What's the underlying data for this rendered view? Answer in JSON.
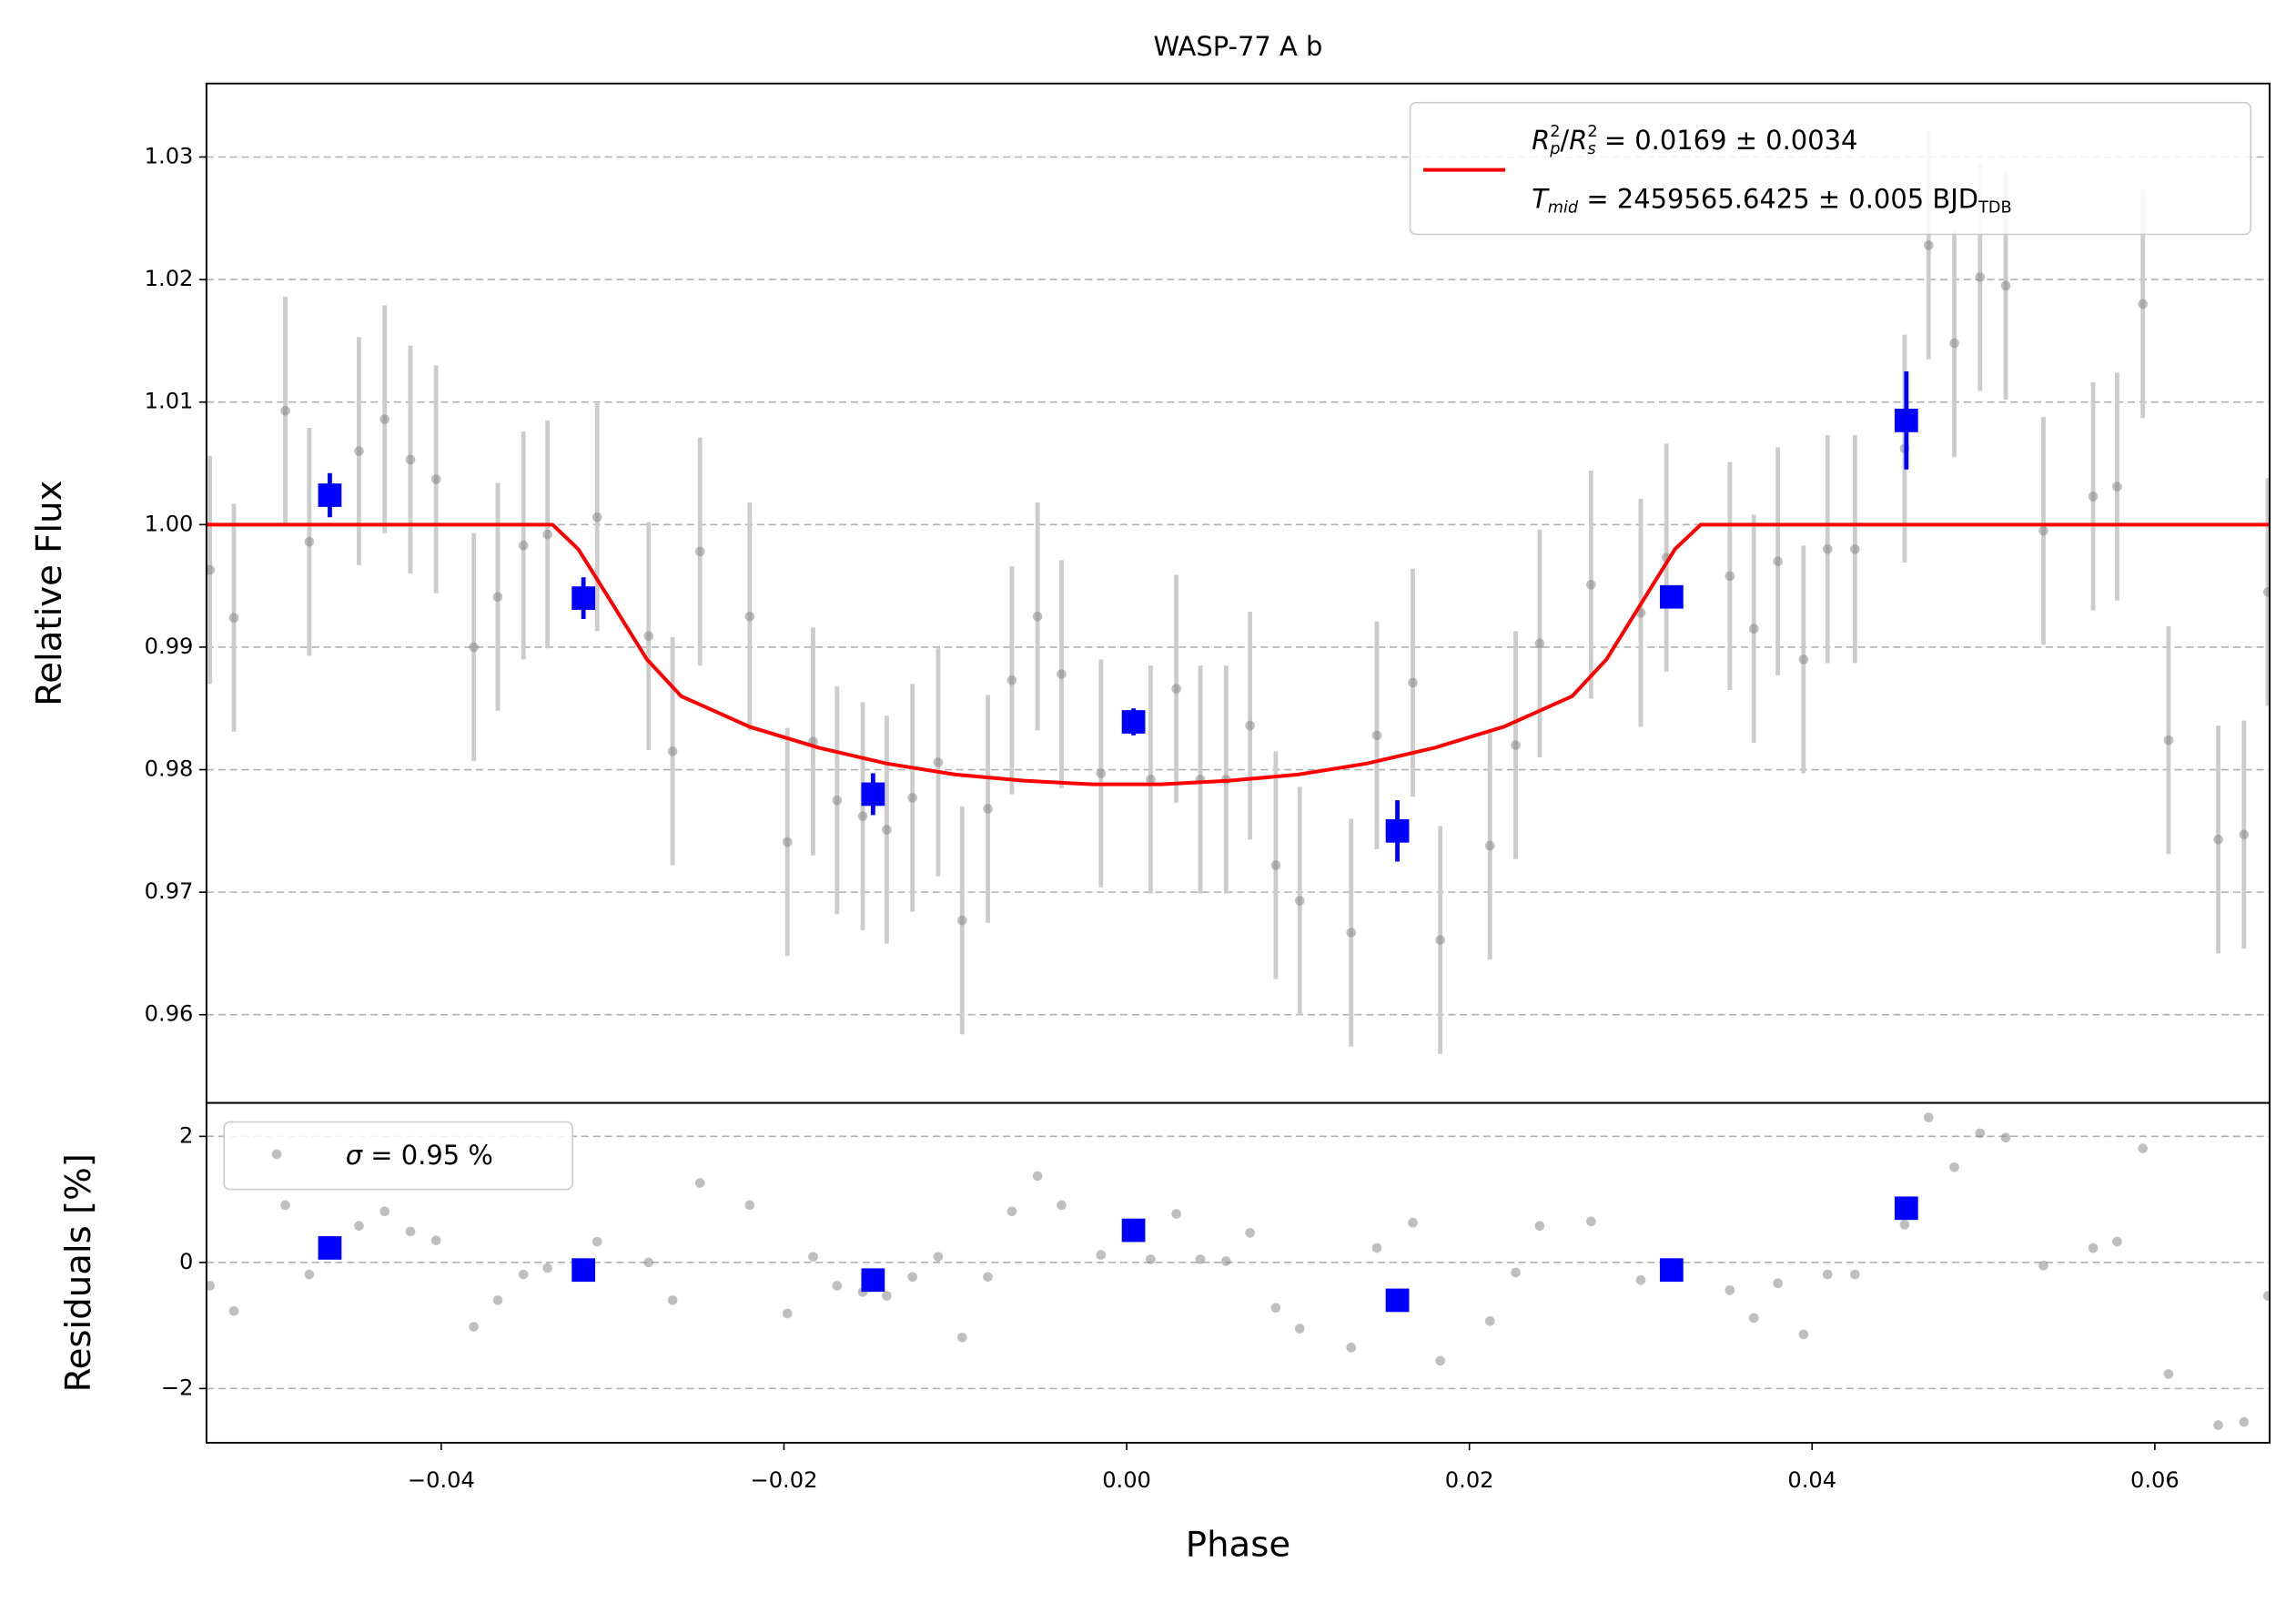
{
  "chart_data": [
    {
      "type": "errorbar",
      "title": "WASP-77 A b",
      "ylabel": "Relative Flux",
      "xlim": [
        -0.0537,
        0.0667
      ],
      "ylim": [
        0.9528,
        1.036
      ],
      "yticks": [
        0.96,
        0.97,
        0.98,
        0.99,
        {
          "value": 1,
          "label": "1.00"
        },
        1.01,
        1.02,
        1.03
      ],
      "grid": true,
      "legend": "upper right",
      "series": [
        {
          "color": "#808080",
          "ecolor": "#cccccc",
          "marker": "circle",
          "x": [
            -0.0535,
            -0.0521,
            -0.0491,
            -0.0477,
            -0.0448,
            -0.0433,
            -0.0418,
            -0.0403,
            -0.0381,
            -0.0367,
            -0.0352,
            -0.0338,
            -0.0309,
            -0.0279,
            -0.0265,
            -0.0249,
            -0.022,
            -0.0198,
            -0.0183,
            -0.0169,
            -0.0154,
            -0.014,
            -0.0125,
            -0.011,
            -0.0096,
            -0.0081,
            -0.0067,
            -0.0052,
            -0.0038,
            -0.0015,
            0.0014,
            0.0029,
            0.0043,
            0.0058,
            0.0072,
            0.0087,
            0.0101,
            0.0131,
            0.0146,
            0.0167,
            0.0183,
            0.0212,
            0.0227,
            0.0241,
            0.0271,
            0.03,
            0.0315,
            0.0352,
            0.0366,
            0.038,
            0.0395,
            0.0409,
            0.0425,
            0.0454,
            0.0468,
            0.0483,
            0.0498,
            0.0513,
            0.0535,
            0.0564,
            0.0578,
            0.0593,
            0.0608,
            0.0637,
            0.0652,
            0.0666
          ],
          "values": [
            0.9963,
            0.9924,
            1.0093,
            0.9986,
            1.006,
            1.0086,
            1.0053,
            1.0037,
            0.99,
            0.9941,
            0.9983,
            0.9992,
            1.0006,
            0.9909,
            0.9815,
            0.9978,
            0.9925,
            0.9741,
            0.9823,
            0.9775,
            0.9762,
            0.9751,
            0.9777,
            0.9806,
            0.9677,
            0.9768,
            0.9873,
            0.9925,
            0.9878,
            0.9797,
            0.9792,
            0.9866,
            0.9792,
            0.9792,
            0.9836,
            0.9722,
            0.9693,
            0.9667,
            0.9828,
            0.9871,
            0.9661,
            0.9738,
            0.982,
            0.9903,
            0.9951,
            0.9928,
            0.9973,
            0.9958,
            0.9915,
            0.997,
            0.989,
            0.998,
            0.998,
            1.0062,
            1.0228,
            1.0148,
            1.0202,
            1.0195,
            0.9995,
            1.0023,
            1.0031,
            1.018,
            0.9824,
            0.9743,
            0.9747,
            0.9945
          ],
          "yerr": 0.0093
        },
        {
          "color": "#0000ff",
          "ecolor": "#0000ff",
          "marker": "square",
          "x": [
            -0.0465,
            -0.0317,
            -0.0148,
            0.0004,
            0.0158,
            0.0318,
            0.0455
          ],
          "values": [
            1.0024,
            0.994,
            0.978,
            0.9839,
            0.975,
            0.9941,
            1.0085
          ],
          "yerr": [
            0.0018,
            0.0017,
            0.0017,
            0.0011,
            0.0025,
            0.0005,
            0.004
          ]
        },
        {
          "color": "#ff0000",
          "line": true,
          "name": [
            {
              "text": "R",
              "italic": true
            },
            {
              "text": "2",
              "pos": "sup"
            },
            {
              "text": "p",
              "pos": "sub",
              "italic": true
            },
            {
              "text": "/"
            },
            {
              "text": "R",
              "italic": true
            },
            {
              "text": "2",
              "pos": "sup"
            },
            {
              "text": "s",
              "pos": "sub",
              "italic": true
            },
            {
              "text": " = 0.0169 ± 0.0034"
            }
          ],
          "name2": [
            {
              "text": "T",
              "italic": true
            },
            {
              "text": "mid",
              "pos": "sub",
              "italic": true
            },
            {
              "text": " = 2459565.6425 ± 0.005 BJD"
            },
            {
              "text": "TDB",
              "pos": "sub"
            }
          ],
          "x": [
            -0.0537,
            -0.0335,
            -0.032,
            -0.03,
            -0.028,
            -0.026,
            -0.022,
            -0.018,
            -0.014,
            -0.01,
            -0.006,
            -0.002,
            0.002,
            0.006,
            0.01,
            0.014,
            0.018,
            0.022,
            0.026,
            0.028,
            0.03,
            0.032,
            0.0335,
            0.0667
          ],
          "values": [
            1,
            1,
            0.998,
            0.9935,
            0.989,
            0.986,
            0.9835,
            0.9818,
            0.9805,
            0.9796,
            0.9791,
            0.9788,
            0.9788,
            0.9791,
            0.9796,
            0.9805,
            0.9818,
            0.9835,
            0.986,
            0.989,
            0.9935,
            0.998,
            1,
            1
          ]
        }
      ]
    },
    {
      "type": "scatter",
      "ylabel": "Residuals [%]",
      "xlabel": "Phase",
      "xlim": [
        -0.0537,
        0.0667
      ],
      "ylim": [
        -2.86,
        2.53
      ],
      "xticks": [
        {
          "value": -0.04,
          "label": "−0.04"
        },
        {
          "value": -0.02,
          "label": "−0.02"
        },
        {
          "value": 0,
          "label": "0.00"
        },
        0.02,
        0.04,
        0.06
      ],
      "yticks": [
        {
          "value": -2,
          "label": "−2"
        },
        0,
        2
      ],
      "grid": true,
      "legend": "upper left",
      "series": [
        {
          "color": "#808080",
          "marker": "circle",
          "name": [
            {
              "text": "σ",
              "italic": true
            },
            {
              "text": " = 0.95 %"
            }
          ],
          "x": [
            -0.0535,
            -0.0521,
            -0.0491,
            -0.0477,
            -0.0448,
            -0.0433,
            -0.0418,
            -0.0403,
            -0.0381,
            -0.0367,
            -0.0352,
            -0.0338,
            -0.0309,
            -0.0279,
            -0.0265,
            -0.0249,
            -0.022,
            -0.0198,
            -0.0183,
            -0.0169,
            -0.0154,
            -0.014,
            -0.0125,
            -0.011,
            -0.0096,
            -0.0081,
            -0.0067,
            -0.0052,
            -0.0038,
            -0.0015,
            0.0014,
            0.0029,
            0.0043,
            0.0058,
            0.0072,
            0.0087,
            0.0101,
            0.0131,
            0.0146,
            0.0167,
            0.0183,
            0.0212,
            0.0227,
            0.0241,
            0.0271,
            0.03,
            0.0315,
            0.0352,
            0.0366,
            0.038,
            0.0395,
            0.0409,
            0.0425,
            0.0454,
            0.0468,
            0.0483,
            0.0498,
            0.0513,
            0.0535,
            0.0564,
            0.0578,
            0.0593,
            0.0608,
            0.0637,
            0.0652,
            0.0666
          ],
          "values": [
            -0.37,
            -0.77,
            0.91,
            -0.19,
            0.58,
            0.81,
            0.49,
            0.35,
            -1.02,
            -0.6,
            -0.19,
            -0.09,
            0.33,
            0,
            -0.6,
            1.26,
            0.91,
            -0.81,
            0.09,
            -0.37,
            -0.47,
            -0.53,
            -0.23,
            0.09,
            -1.19,
            -0.23,
            0.81,
            1.37,
            0.91,
            0.12,
            0.05,
            0.77,
            0.05,
            0.02,
            0.47,
            -0.72,
            -1.05,
            -1.35,
            0.23,
            0.63,
            -1.56,
            -0.93,
            -0.16,
            0.58,
            0.65,
            -0.28,
            -0.1,
            -0.44,
            -0.88,
            -0.33,
            -1.14,
            -0.19,
            -0.19,
            0.6,
            2.3,
            1.51,
            2.05,
            1.98,
            -0.05,
            0.23,
            0.33,
            1.81,
            -1.77,
            -2.58,
            -2.53,
            -0.53
          ]
        },
        {
          "color": "#0000ff",
          "marker": "square",
          "x": [
            -0.0465,
            -0.0317,
            -0.0148,
            0.0004,
            0.0158,
            0.0318,
            0.0455
          ],
          "values": [
            0.23,
            -0.12,
            -0.28,
            0.51,
            -0.6,
            -0.12,
            0.86
          ]
        }
      ]
    }
  ]
}
